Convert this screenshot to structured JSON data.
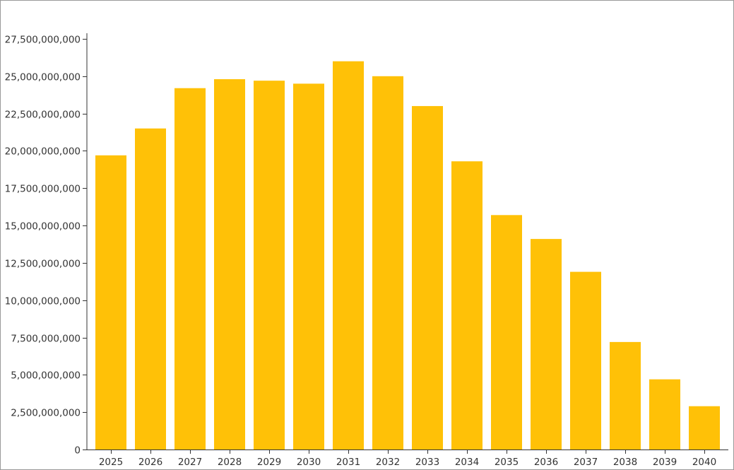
{
  "chart_data": {
    "type": "bar",
    "title": "",
    "xlabel": "",
    "ylabel": "",
    "categories": [
      "2025",
      "2026",
      "2027",
      "2028",
      "2029",
      "2030",
      "2031",
      "2032",
      "2033",
      "2034",
      "2035",
      "2036",
      "2037",
      "2038",
      "2039",
      "2040"
    ],
    "values": [
      19700000000,
      21500000000,
      24200000000,
      24800000000,
      24700000000,
      24500000000,
      26000000000,
      25000000000,
      23000000000,
      19300000000,
      15700000000,
      14100000000,
      11900000000,
      7200000000,
      4700000000,
      2900000000
    ],
    "ylim": [
      0,
      27500000000
    ],
    "yticks": [
      0,
      2500000000,
      5000000000,
      7500000000,
      10000000000,
      12500000000,
      15000000000,
      17500000000,
      20000000000,
      22500000000,
      25000000000,
      27500000000
    ],
    "ytick_labels": [
      "0",
      "2,500,000,000",
      "5,000,000,000",
      "7,500,000,000",
      "10,000,000,000",
      "12,500,000,000",
      "15,000,000,000",
      "17,500,000,000",
      "20,000,000,000",
      "22,500,000,000",
      "25,000,000,000",
      "27,500,000,000"
    ],
    "grid": false,
    "legend": "none",
    "bar_color": "#FFC107"
  }
}
